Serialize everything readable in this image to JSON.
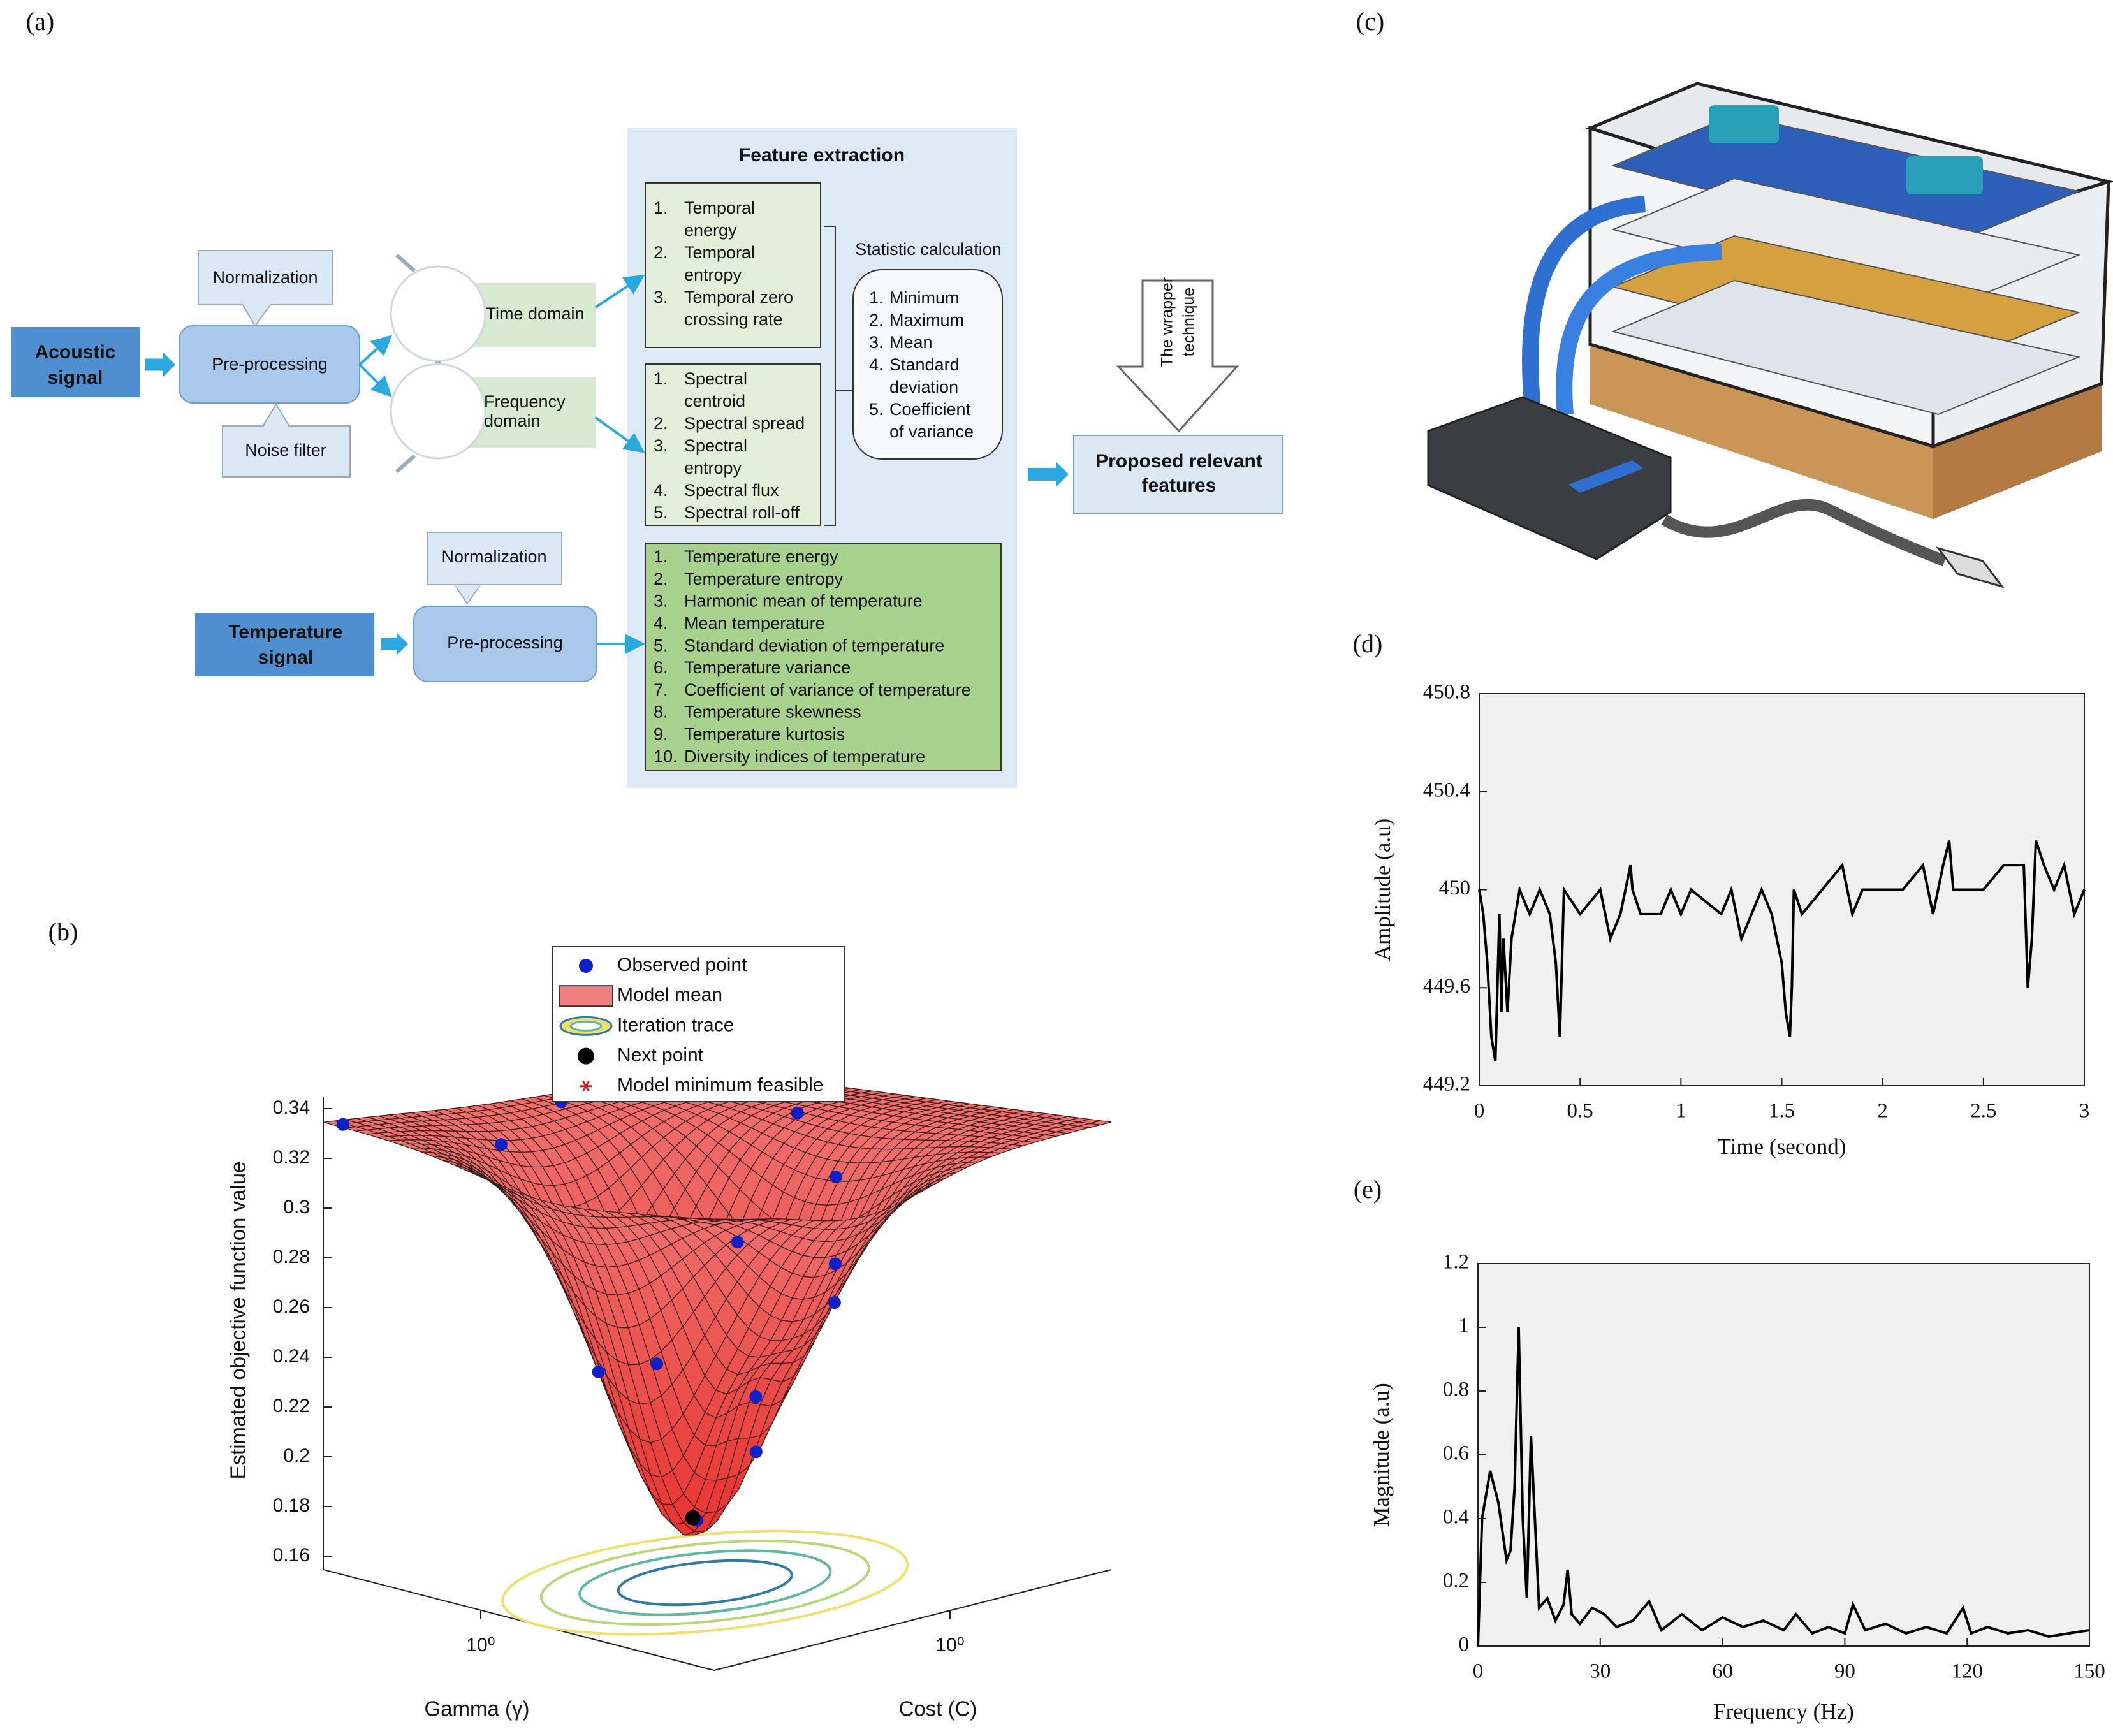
{
  "panels": {
    "a": "(a)",
    "b": "(b)",
    "c": "(c)",
    "d": "(d)",
    "e": "(e)"
  },
  "diagram": {
    "acoustic": [
      "Acoustic",
      "signal"
    ],
    "preprocessing1": "Pre-processing",
    "normalization1": "Normalization",
    "noise_filter": "Noise filter",
    "time_domain": "Time domain",
    "frequency_domain": [
      "Frequency",
      "domain"
    ],
    "feature_extraction": "Feature extraction",
    "temporal": [
      {
        "num": "1.",
        "lines": [
          "Temporal",
          "energy"
        ]
      },
      {
        "num": "2.",
        "lines": [
          "Temporal",
          "entropy"
        ]
      },
      {
        "num": "3.",
        "lines": [
          "Temporal zero",
          "crossing rate"
        ]
      }
    ],
    "spectral": [
      {
        "num": "1.",
        "lines": [
          "Spectral",
          "centroid"
        ]
      },
      {
        "num": "2.",
        "lines": [
          "Spectral spread"
        ]
      },
      {
        "num": "3.",
        "lines": [
          "Spectral",
          "entropy"
        ]
      },
      {
        "num": "4.",
        "lines": [
          "Spectral flux"
        ]
      },
      {
        "num": "5.",
        "lines": [
          "Spectral roll-off"
        ]
      }
    ],
    "statistic_title": "Statistic calculation",
    "statistics": [
      {
        "num": "1.",
        "lines": [
          "Minimum"
        ]
      },
      {
        "num": "2.",
        "lines": [
          "Maximum"
        ]
      },
      {
        "num": "3.",
        "lines": [
          "Mean"
        ]
      },
      {
        "num": "4.",
        "lines": [
          "Standard",
          "deviation"
        ]
      },
      {
        "num": "5.",
        "lines": [
          "Coefficient",
          "of variance"
        ]
      }
    ],
    "temperature_features": [
      {
        "num": "1.",
        "lines": [
          "Temperature energy"
        ]
      },
      {
        "num": "2.",
        "lines": [
          "Temperature entropy"
        ]
      },
      {
        "num": "3.",
        "lines": [
          "Harmonic mean of temperature"
        ]
      },
      {
        "num": "4.",
        "lines": [
          "Mean temperature"
        ]
      },
      {
        "num": "5.",
        "lines": [
          "Standard deviation of temperature"
        ]
      },
      {
        "num": "6.",
        "lines": [
          "Temperature variance"
        ]
      },
      {
        "num": "7.",
        "lines": [
          "Coefficient of variance of temperature"
        ]
      },
      {
        "num": "8.",
        "lines": [
          "Temperature skewness"
        ]
      },
      {
        "num": "9.",
        "lines": [
          "Temperature kurtosis"
        ]
      },
      {
        "num": "10.",
        "lines": [
          "Diversity indices of temperature"
        ]
      }
    ],
    "temperature": [
      "Temperature",
      "signal"
    ],
    "normalization2": "Normalization",
    "preprocessing2": "Pre-processing",
    "wrapper": [
      "The wrapper",
      "technique"
    ],
    "proposed": [
      "Proposed relevant",
      "features"
    ]
  },
  "chart_data": [
    {
      "type": "surface",
      "zlabel": "Estimated objective function value",
      "xlabel": "Cost (C)",
      "ylabel": "Gamma (γ)",
      "zlim": [
        0.16,
        0.34
      ],
      "zticks": [
        0.16,
        0.18,
        0.2,
        0.22,
        0.24,
        0.26,
        0.28,
        0.3,
        0.32,
        0.34
      ],
      "xticks": [
        {
          "value": 1,
          "label": "10⁰"
        }
      ],
      "yticks": [
        {
          "value": 1,
          "label": "10⁰"
        }
      ],
      "legend": [
        {
          "name": "Observed point",
          "color": "#1020c8"
        },
        {
          "name": "Model mean",
          "color": "#f08080"
        },
        {
          "name": "Iteration trace"
        },
        {
          "name": "Next point",
          "color": "#000000"
        },
        {
          "name": "Model minimum feasible",
          "color": "#d02020"
        }
      ]
    },
    {
      "type": "line",
      "xlabel": "Time (second)",
      "ylabel": "Amplitude (a.u)",
      "color": "#000000",
      "xlim": [
        0,
        3
      ],
      "ylim": [
        449.2,
        450.8
      ],
      "xticks": [
        0,
        0.5,
        1,
        1.5,
        2,
        2.5,
        3
      ],
      "yticks": [
        449.2,
        449.6,
        450,
        450.4,
        450.8
      ],
      "x": [
        0,
        0.02,
        0.04,
        0.06,
        0.08,
        0.09,
        0.1,
        0.11,
        0.12,
        0.14,
        0.16,
        0.18,
        0.2,
        0.25,
        0.3,
        0.35,
        0.38,
        0.4,
        0.42,
        0.5,
        0.6,
        0.65,
        0.7,
        0.75,
        0.76,
        0.8,
        0.9,
        0.95,
        1.0,
        1.05,
        1.2,
        1.25,
        1.3,
        1.35,
        1.4,
        1.45,
        1.5,
        1.52,
        1.54,
        1.55,
        1.56,
        1.6,
        1.7,
        1.8,
        1.85,
        1.9,
        2.0,
        2.1,
        2.2,
        2.25,
        2.3,
        2.33,
        2.35,
        2.4,
        2.5,
        2.6,
        2.7,
        2.72,
        2.74,
        2.76,
        2.8,
        2.85,
        2.9,
        2.95,
        3.0
      ],
      "values": [
        450,
        449.9,
        449.7,
        449.4,
        449.3,
        449.6,
        449.9,
        449.5,
        449.8,
        449.5,
        449.8,
        449.9,
        450,
        449.9,
        450,
        449.9,
        449.7,
        449.4,
        450,
        449.9,
        450,
        449.8,
        449.9,
        450.1,
        450,
        449.9,
        449.9,
        450,
        449.9,
        450,
        449.9,
        450,
        449.8,
        449.9,
        450,
        449.9,
        449.7,
        449.5,
        449.4,
        449.6,
        450,
        449.9,
        450,
        450.1,
        449.9,
        450,
        450,
        450,
        450.1,
        449.9,
        450.1,
        450.2,
        450,
        450,
        450,
        450.1,
        450.1,
        449.6,
        449.8,
        450.2,
        450.1,
        450,
        450.1,
        449.9,
        450
      ]
    },
    {
      "type": "line",
      "xlabel": "Frequency (Hz)",
      "ylabel": "Magnitude (a.u)",
      "color": "#000000",
      "xlim": [
        0,
        150
      ],
      "ylim": [
        0,
        1.2
      ],
      "xticks": [
        0,
        30,
        60,
        90,
        120,
        150
      ],
      "yticks": [
        0,
        0.2,
        0.4,
        0.6,
        0.8,
        1,
        1.2
      ],
      "x": [
        0,
        1,
        3,
        5,
        7,
        8,
        9,
        10,
        11,
        12,
        13,
        15,
        17,
        19,
        21,
        22,
        23,
        25,
        28,
        31,
        34,
        38,
        42,
        45,
        50,
        55,
        60,
        65,
        70,
        75,
        78,
        82,
        86,
        90,
        92,
        95,
        100,
        105,
        110,
        115,
        119,
        121,
        125,
        130,
        135,
        140,
        145,
        150
      ],
      "values": [
        0,
        0.4,
        0.55,
        0.45,
        0.27,
        0.3,
        0.5,
        1.0,
        0.4,
        0.15,
        0.66,
        0.12,
        0.15,
        0.08,
        0.13,
        0.24,
        0.1,
        0.07,
        0.12,
        0.1,
        0.06,
        0.08,
        0.14,
        0.05,
        0.1,
        0.05,
        0.09,
        0.06,
        0.08,
        0.05,
        0.1,
        0.04,
        0.06,
        0.04,
        0.13,
        0.05,
        0.07,
        0.04,
        0.06,
        0.04,
        0.12,
        0.04,
        0.06,
        0.04,
        0.05,
        0.03,
        0.04,
        0.05
      ]
    }
  ]
}
